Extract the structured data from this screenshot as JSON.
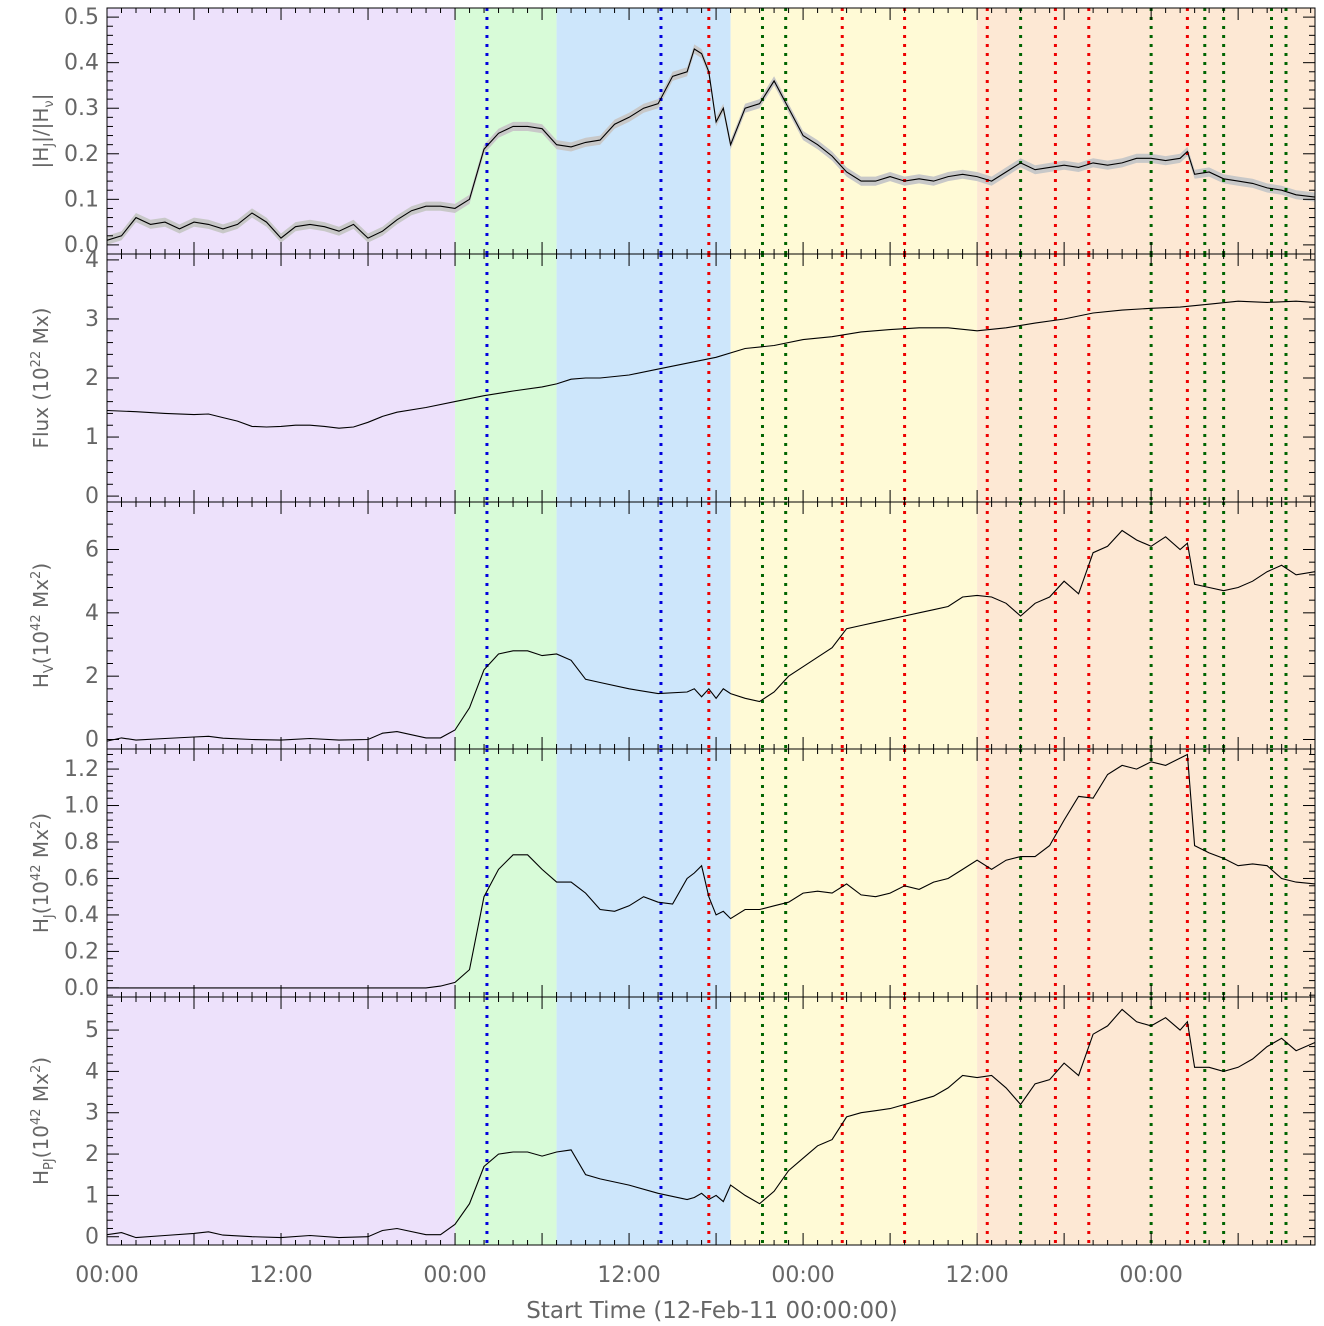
{
  "chart_data": {
    "type": "line",
    "x_unit": "hours since start time",
    "xlim": [
      0,
      83.3
    ],
    "x_tick_labels": [
      {
        "x": 0,
        "label": "00:00"
      },
      {
        "x": 12,
        "label": "12:00"
      },
      {
        "x": 24,
        "label": "00:00"
      },
      {
        "x": 36,
        "label": "12:00"
      },
      {
        "x": 48,
        "label": "00:00"
      },
      {
        "x": 60,
        "label": "12:00"
      },
      {
        "x": 72,
        "label": "00:00"
      }
    ],
    "xlabel": "Start Time (12-Feb-11 00:00:00)",
    "phases": [
      {
        "x0": 0,
        "x1": 24,
        "color": "#ede1fb"
      },
      {
        "x0": 24,
        "x1": 31,
        "color": "#d8fbd8"
      },
      {
        "x0": 31,
        "x1": 43,
        "color": "#cde6fb"
      },
      {
        "x0": 43,
        "x1": 60,
        "color": "#fffad6"
      },
      {
        "x0": 60,
        "x1": 83.3,
        "color": "#fde8d4"
      }
    ],
    "event_lines": {
      "blue": {
        "color": "#0000dd",
        "x": [
          26.2,
          38.2
        ]
      },
      "red": {
        "color": "#ee0000",
        "x": [
          41.5,
          50.7,
          55,
          60.7,
          65.4,
          67.7,
          74.5
        ]
      },
      "green": {
        "color": "#006400",
        "x": [
          45.2,
          46.8,
          63,
          72,
          75.7,
          77,
          80.3,
          81.3
        ]
      }
    },
    "panels": [
      {
        "name": "HJ-ratio",
        "ylabel_parts": [
          "|",
          "H",
          "J",
          "|/|",
          "H",
          "ν",
          "|"
        ],
        "ylim": [
          -0.02,
          0.52
        ],
        "yticks": [
          0.0,
          0.1,
          0.2,
          0.3,
          0.4,
          0.5
        ],
        "ytick_labels": [
          "0.0",
          "0.1",
          "0.2",
          "0.3",
          "0.4",
          "0.5"
        ],
        "band": 0.01,
        "band_color": "#c8c8c8",
        "x": [
          0,
          1,
          2,
          3,
          4,
          5,
          6,
          7,
          8,
          9,
          10,
          11,
          12,
          13,
          14,
          15,
          16,
          17,
          18,
          19,
          20,
          21,
          22,
          23,
          24,
          25,
          26,
          27,
          28,
          29,
          30,
          31,
          32,
          33,
          34,
          35,
          36,
          37,
          38,
          39,
          40,
          40.5,
          41,
          41.5,
          42,
          42.5,
          43,
          44,
          45,
          46,
          47,
          48,
          49,
          50,
          51,
          52,
          53,
          54,
          55,
          56,
          57,
          58,
          59,
          60,
          61,
          62,
          63,
          64,
          65,
          66,
          67,
          68,
          69,
          70,
          71,
          72,
          73,
          74,
          74.5,
          75,
          76,
          77,
          78,
          79,
          80,
          81,
          82,
          83.3
        ],
        "values": [
          0.01,
          0.02,
          0.06,
          0.045,
          0.05,
          0.035,
          0.05,
          0.045,
          0.035,
          0.045,
          0.07,
          0.05,
          0.015,
          0.04,
          0.045,
          0.04,
          0.03,
          0.045,
          0.015,
          0.03,
          0.055,
          0.075,
          0.085,
          0.085,
          0.08,
          0.1,
          0.21,
          0.245,
          0.26,
          0.26,
          0.255,
          0.22,
          0.215,
          0.225,
          0.23,
          0.265,
          0.28,
          0.3,
          0.31,
          0.37,
          0.38,
          0.43,
          0.42,
          0.38,
          0.27,
          0.3,
          0.22,
          0.3,
          0.31,
          0.36,
          0.3,
          0.24,
          0.22,
          0.195,
          0.16,
          0.14,
          0.14,
          0.15,
          0.14,
          0.145,
          0.14,
          0.15,
          0.155,
          0.15,
          0.14,
          0.16,
          0.18,
          0.165,
          0.17,
          0.175,
          0.17,
          0.18,
          0.175,
          0.18,
          0.19,
          0.19,
          0.185,
          0.19,
          0.205,
          0.155,
          0.16,
          0.145,
          0.14,
          0.135,
          0.125,
          0.12,
          0.11,
          0.105
        ]
      },
      {
        "name": "Flux",
        "ylabel_parts": [
          "Flux (10",
          "22",
          " Mx)"
        ],
        "ylim": [
          -0.1,
          4.1
        ],
        "yticks": [
          0,
          1,
          2,
          3,
          4
        ],
        "ytick_labels": [
          "0",
          "1",
          "2",
          "3",
          "4"
        ],
        "x": [
          0,
          2,
          4,
          6,
          7,
          8,
          9,
          10,
          11,
          12,
          13,
          14,
          15,
          16,
          17,
          18,
          19,
          20,
          22,
          24,
          26,
          28,
          30,
          31,
          32,
          33,
          34,
          36,
          38,
          40,
          42,
          44,
          46,
          48,
          50,
          52,
          54,
          56,
          58,
          60,
          62,
          64,
          66,
          68,
          70,
          72,
          74,
          76,
          78,
          80,
          82,
          83.3
        ],
        "values": [
          1.45,
          1.43,
          1.4,
          1.38,
          1.39,
          1.33,
          1.27,
          1.18,
          1.17,
          1.18,
          1.2,
          1.2,
          1.18,
          1.15,
          1.17,
          1.25,
          1.35,
          1.42,
          1.5,
          1.6,
          1.7,
          1.78,
          1.85,
          1.9,
          1.98,
          2.0,
          2.0,
          2.05,
          2.15,
          2.25,
          2.35,
          2.5,
          2.55,
          2.65,
          2.7,
          2.78,
          2.82,
          2.85,
          2.85,
          2.8,
          2.85,
          2.93,
          3.0,
          3.1,
          3.15,
          3.18,
          3.2,
          3.25,
          3.3,
          3.28,
          3.3,
          3.28
        ]
      },
      {
        "name": "Hv",
        "ylabel_parts": [
          "H",
          "V",
          "(10",
          "42",
          " Mx",
          "2",
          ")"
        ],
        "ylim": [
          -0.3,
          7.5
        ],
        "yticks": [
          0,
          2,
          4,
          6
        ],
        "ytick_labels": [
          "0",
          "2",
          "4",
          "6"
        ],
        "x": [
          0,
          1,
          2,
          4,
          6,
          7,
          8,
          10,
          12,
          14,
          16,
          18,
          19,
          20,
          22,
          23,
          24,
          25,
          26,
          27,
          28,
          29,
          30,
          31,
          32,
          33,
          34,
          36,
          38,
          40,
          40.5,
          41,
          41.5,
          42,
          42.5,
          43,
          44,
          45,
          46,
          47,
          48,
          49,
          50,
          51,
          52,
          53,
          54,
          55,
          56,
          57,
          58,
          59,
          60,
          61,
          62,
          63,
          64,
          65,
          66,
          67,
          68,
          69,
          70,
          71,
          72,
          73,
          74,
          74.5,
          75,
          76,
          77,
          78,
          79,
          80,
          81,
          82,
          83.3
        ],
        "values": [
          -0.05,
          0.05,
          -0.02,
          0.03,
          0.08,
          0.1,
          0.04,
          0.0,
          -0.02,
          0.03,
          -0.02,
          0.0,
          0.2,
          0.25,
          0.05,
          0.05,
          0.3,
          1.0,
          2.2,
          2.7,
          2.8,
          2.8,
          2.65,
          2.7,
          2.5,
          1.9,
          1.8,
          1.6,
          1.45,
          1.5,
          1.6,
          1.35,
          1.6,
          1.3,
          1.6,
          1.45,
          1.3,
          1.2,
          1.5,
          2.0,
          2.3,
          2.6,
          2.9,
          3.5,
          3.6,
          3.7,
          3.8,
          3.9,
          4.0,
          4.1,
          4.2,
          4.5,
          4.55,
          4.5,
          4.3,
          3.9,
          4.3,
          4.5,
          5.0,
          4.6,
          5.9,
          6.1,
          6.6,
          6.3,
          6.1,
          6.4,
          6.0,
          6.2,
          4.9,
          4.8,
          4.7,
          4.8,
          5.0,
          5.3,
          5.5,
          5.2,
          5.3
        ]
      },
      {
        "name": "HJ",
        "ylabel_parts": [
          "H",
          "J",
          "(10",
          "42",
          " Mx",
          "2",
          ")"
        ],
        "ylim": [
          -0.05,
          1.31
        ],
        "yticks": [
          0.0,
          0.2,
          0.4,
          0.6,
          0.8,
          1.0,
          1.2
        ],
        "ytick_labels": [
          "0.0",
          "0.2",
          "0.4",
          "0.6",
          "0.8",
          "1.0",
          "1.2"
        ],
        "x": [
          0,
          4,
          8,
          12,
          16,
          20,
          22,
          23,
          24,
          25,
          26,
          27,
          28,
          29,
          30,
          31,
          32,
          33,
          34,
          35,
          36,
          37,
          38,
          39,
          40,
          40.5,
          41,
          41.5,
          42,
          42.5,
          43,
          44,
          45,
          46,
          47,
          48,
          49,
          50,
          51,
          52,
          53,
          54,
          55,
          56,
          57,
          58,
          59,
          60,
          61,
          62,
          63,
          64,
          65,
          66,
          67,
          68,
          69,
          70,
          71,
          72,
          73,
          74,
          74.5,
          75,
          76,
          77,
          78,
          79,
          80,
          81,
          82,
          83.3
        ],
        "values": [
          0.0,
          0.0,
          0.0,
          0.0,
          0.0,
          0.0,
          0.0,
          0.01,
          0.03,
          0.1,
          0.5,
          0.65,
          0.73,
          0.73,
          0.65,
          0.58,
          0.58,
          0.52,
          0.43,
          0.42,
          0.45,
          0.5,
          0.47,
          0.46,
          0.6,
          0.63,
          0.67,
          0.5,
          0.4,
          0.42,
          0.38,
          0.43,
          0.43,
          0.45,
          0.47,
          0.52,
          0.53,
          0.52,
          0.57,
          0.51,
          0.5,
          0.52,
          0.56,
          0.54,
          0.58,
          0.6,
          0.65,
          0.7,
          0.65,
          0.7,
          0.72,
          0.72,
          0.78,
          0.92,
          1.05,
          1.04,
          1.17,
          1.22,
          1.2,
          1.24,
          1.22,
          1.26,
          1.28,
          0.78,
          0.74,
          0.71,
          0.67,
          0.68,
          0.67,
          0.6,
          0.58,
          0.57
        ]
      },
      {
        "name": "HPJ",
        "ylabel_parts": [
          "H",
          "PJ",
          "(10",
          "42",
          " Mx",
          "2",
          ")"
        ],
        "ylim": [
          -0.2,
          5.8
        ],
        "yticks": [
          0,
          1,
          2,
          3,
          4,
          5
        ],
        "ytick_labels": [
          "0",
          "1",
          "2",
          "3",
          "4",
          "5"
        ],
        "x": [
          0,
          1,
          2,
          4,
          6,
          7,
          8,
          10,
          12,
          14,
          16,
          18,
          19,
          20,
          22,
          23,
          24,
          25,
          26,
          27,
          28,
          29,
          30,
          31,
          32,
          33,
          34,
          36,
          38,
          40,
          40.5,
          41,
          41.5,
          42,
          42.5,
          43,
          44,
          45,
          46,
          47,
          48,
          49,
          50,
          51,
          52,
          53,
          54,
          55,
          56,
          57,
          58,
          59,
          60,
          61,
          62,
          63,
          64,
          65,
          66,
          67,
          68,
          69,
          70,
          71,
          72,
          73,
          74,
          74.5,
          75,
          76,
          77,
          78,
          79,
          80,
          81,
          82,
          83.3
        ],
        "values": [
          0.05,
          0.1,
          -0.02,
          0.03,
          0.08,
          0.12,
          0.04,
          0.0,
          -0.02,
          0.03,
          -0.02,
          0.0,
          0.15,
          0.2,
          0.05,
          0.05,
          0.3,
          0.8,
          1.7,
          2.0,
          2.05,
          2.05,
          1.95,
          2.05,
          2.1,
          1.5,
          1.4,
          1.25,
          1.05,
          0.9,
          0.95,
          1.05,
          0.9,
          1.0,
          0.85,
          1.25,
          1.0,
          0.8,
          1.1,
          1.6,
          1.9,
          2.2,
          2.35,
          2.9,
          3.0,
          3.05,
          3.1,
          3.2,
          3.3,
          3.4,
          3.6,
          3.9,
          3.85,
          3.9,
          3.6,
          3.2,
          3.7,
          3.8,
          4.2,
          3.9,
          4.9,
          5.1,
          5.5,
          5.2,
          5.1,
          5.3,
          5.0,
          5.2,
          4.1,
          4.1,
          4.0,
          4.1,
          4.3,
          4.6,
          4.8,
          4.5,
          4.7
        ]
      }
    ]
  }
}
